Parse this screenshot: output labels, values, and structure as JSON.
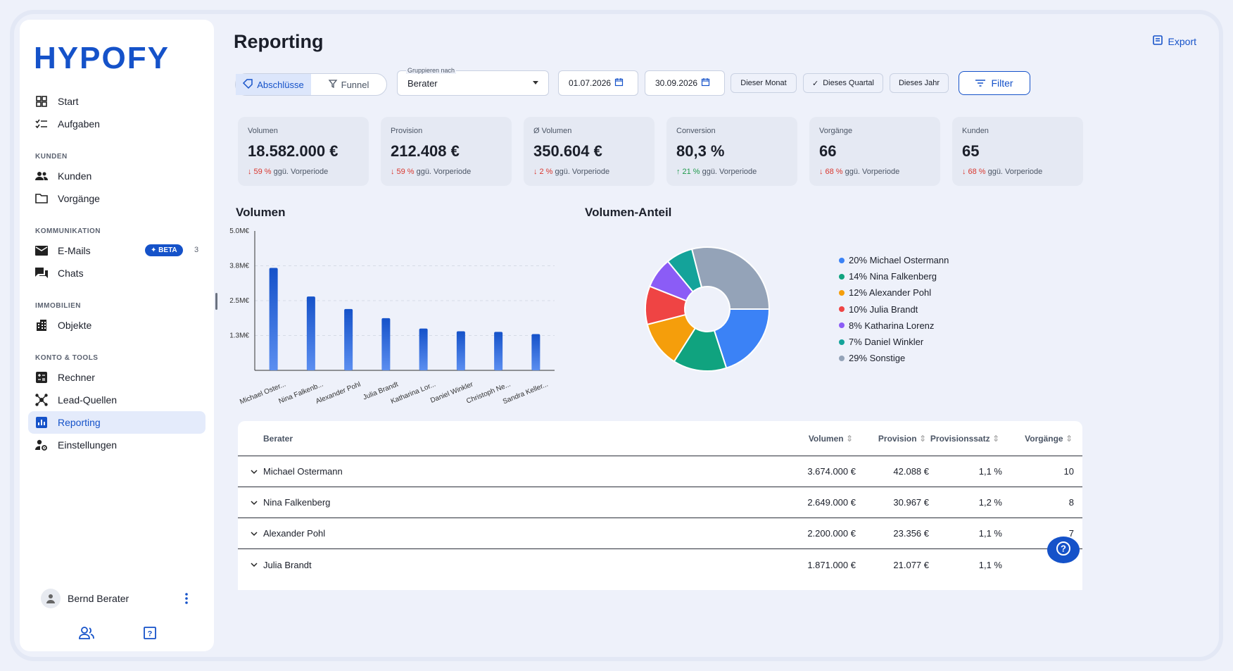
{
  "brand": {
    "logo": "HYPOFY",
    "accent": "#1552c9"
  },
  "sidebar": {
    "top_items": [
      {
        "label": "Start",
        "icon": "grid-icon"
      },
      {
        "label": "Aufgaben",
        "icon": "checklist-icon"
      }
    ],
    "sections": [
      {
        "title": "KUNDEN",
        "items": [
          {
            "label": "Kunden",
            "icon": "people-icon"
          },
          {
            "label": "Vorgänge",
            "icon": "folder-icon"
          }
        ]
      },
      {
        "title": "KOMMUNIKATION",
        "items": [
          {
            "label": "E-Mails",
            "icon": "mail-icon",
            "badge": "BETA",
            "count": "3"
          },
          {
            "label": "Chats",
            "icon": "chat-icon"
          }
        ]
      },
      {
        "title": "IMMOBILIEN",
        "items": [
          {
            "label": "Objekte",
            "icon": "building-icon"
          }
        ]
      },
      {
        "title": "KONTO & TOOLS",
        "items": [
          {
            "label": "Rechner",
            "icon": "calculator-icon"
          },
          {
            "label": "Lead-Quellen",
            "icon": "hub-icon"
          },
          {
            "label": "Reporting",
            "icon": "chart-icon",
            "active": true
          },
          {
            "label": "Einstellungen",
            "icon": "user-settings-icon"
          }
        ]
      }
    ],
    "user_name": "Bernd Berater"
  },
  "header": {
    "title": "Reporting",
    "export_label": "Export"
  },
  "toolbar": {
    "seg_abschluesse": "Abschlüsse",
    "seg_funnel": "Funnel",
    "group_label": "Gruppieren nach",
    "group_value": "Berater",
    "date_from": "01.07.2026",
    "date_to": "30.09.2026",
    "preset_month": "Dieser Monat",
    "preset_quarter": "Dieses Quartal",
    "preset_year": "Dieses Jahr",
    "filter_label": "Filter"
  },
  "kpis": [
    {
      "label": "Volumen",
      "value": "18.582.000 €",
      "delta": "59 %",
      "direction": "down",
      "suffix": "ggü. Vorperiode"
    },
    {
      "label": "Provision",
      "value": "212.408 €",
      "delta": "59 %",
      "direction": "down",
      "suffix": "ggü. Vorperiode"
    },
    {
      "label": "Ø Volumen",
      "value": "350.604 €",
      "delta": "2 %",
      "direction": "down",
      "suffix": "ggü. Vorperiode"
    },
    {
      "label": "Conversion",
      "value": "80,3 %",
      "delta": "21 %",
      "direction": "up",
      "suffix": "ggü. Vorperiode"
    },
    {
      "label": "Vorgänge",
      "value": "66",
      "delta": "68 %",
      "direction": "down",
      "suffix": "ggü. Vorperiode"
    },
    {
      "label": "Kunden",
      "value": "65",
      "delta": "68 %",
      "direction": "down",
      "suffix": "ggü. Vorperiode"
    }
  ],
  "chart_data": [
    {
      "type": "bar",
      "title": "Volumen",
      "categories": [
        "Michael Oster...",
        "Nina Falkenb...",
        "Alexander Pohl",
        "Julia Brandt",
        "Katharina Lor...",
        "Daniel Winkler",
        "Christoph Ne...",
        "Sandra Keller..."
      ],
      "values": [
        3.674,
        2.649,
        2.2,
        1.871,
        1.5,
        1.4,
        1.38,
        1.3
      ],
      "ytick_labels": [
        "5.0M€",
        "3.8M€",
        "2.5M€",
        "1.3M€"
      ],
      "ytick_values": [
        5.0,
        3.75,
        2.5,
        1.25
      ],
      "ylim": [
        0,
        5.0
      ],
      "color": "#1552c9"
    },
    {
      "type": "pie",
      "title": "Volumen-Anteil",
      "slices": [
        {
          "label": "20% Michael Ostermann",
          "value": 20,
          "color": "#3b82f6"
        },
        {
          "label": "14% Nina Falkenberg",
          "value": 14,
          "color": "#10a37f"
        },
        {
          "label": "12% Alexander Pohl",
          "value": 12,
          "color": "#f59e0b"
        },
        {
          "label": "10% Julia Brandt",
          "value": 10,
          "color": "#ef4444"
        },
        {
          "label": "8% Katharina Lorenz",
          "value": 8,
          "color": "#8b5cf6"
        },
        {
          "label": "7% Daniel Winkler",
          "value": 7,
          "color": "#14a39a"
        },
        {
          "label": "29% Sonstige",
          "value": 29,
          "color": "#94a3b8"
        }
      ]
    }
  ],
  "table": {
    "headers": {
      "berater": "Berater",
      "volumen": "Volumen",
      "provision": "Provision",
      "satz": "Provisionssatz",
      "vorgaenge": "Vorgänge"
    },
    "rows": [
      {
        "berater": "Michael Ostermann",
        "volumen": "3.674.000 €",
        "provision": "42.088 €",
        "satz": "1,1 %",
        "vorgaenge": "10"
      },
      {
        "berater": "Nina Falkenberg",
        "volumen": "2.649.000 €",
        "provision": "30.967 €",
        "satz": "1,2 %",
        "vorgaenge": "8"
      },
      {
        "berater": "Alexander Pohl",
        "volumen": "2.200.000 €",
        "provision": "23.356 €",
        "satz": "1,1 %",
        "vorgaenge": "7"
      },
      {
        "berater": "Julia Brandt",
        "volumen": "1.871.000 €",
        "provision": "21.077 €",
        "satz": "1,1 %",
        "vorgaenge": ""
      }
    ]
  }
}
